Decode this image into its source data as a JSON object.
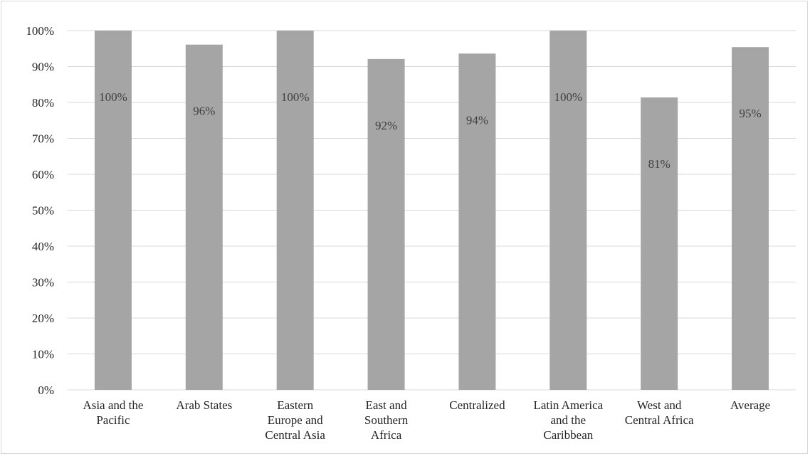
{
  "chart_data": {
    "type": "bar",
    "categories": [
      [
        "Asia and the",
        "Pacific"
      ],
      [
        "Arab States"
      ],
      [
        "Eastern",
        "Europe and",
        "Central Asia"
      ],
      [
        "East and",
        "Southern",
        "Africa"
      ],
      [
        "Centralized"
      ],
      [
        "Latin America",
        "and the",
        "Caribbean"
      ],
      [
        "West and",
        "Central Africa"
      ],
      [
        "Average"
      ]
    ],
    "values": [
      100,
      96.1,
      100,
      92.1,
      93.6,
      100,
      81.4,
      95.4
    ],
    "data_labels": [
      "100%",
      "96%",
      "100%",
      "92%",
      "94%",
      "100%",
      "81%",
      "95%"
    ],
    "ylim": [
      0,
      100
    ],
    "yticks": [
      0,
      10,
      20,
      30,
      40,
      50,
      60,
      70,
      80,
      90,
      100
    ],
    "ytick_labels": [
      "0%",
      "10%",
      "20%",
      "30%",
      "40%",
      "50%",
      "60%",
      "70%",
      "80%",
      "90%",
      "100%"
    ],
    "title": "",
    "xlabel": "",
    "ylabel": "",
    "grid": true,
    "bar_color": "#a5a5a5",
    "grid_color": "#d9d9d9",
    "data_label_color": "#404040"
  }
}
